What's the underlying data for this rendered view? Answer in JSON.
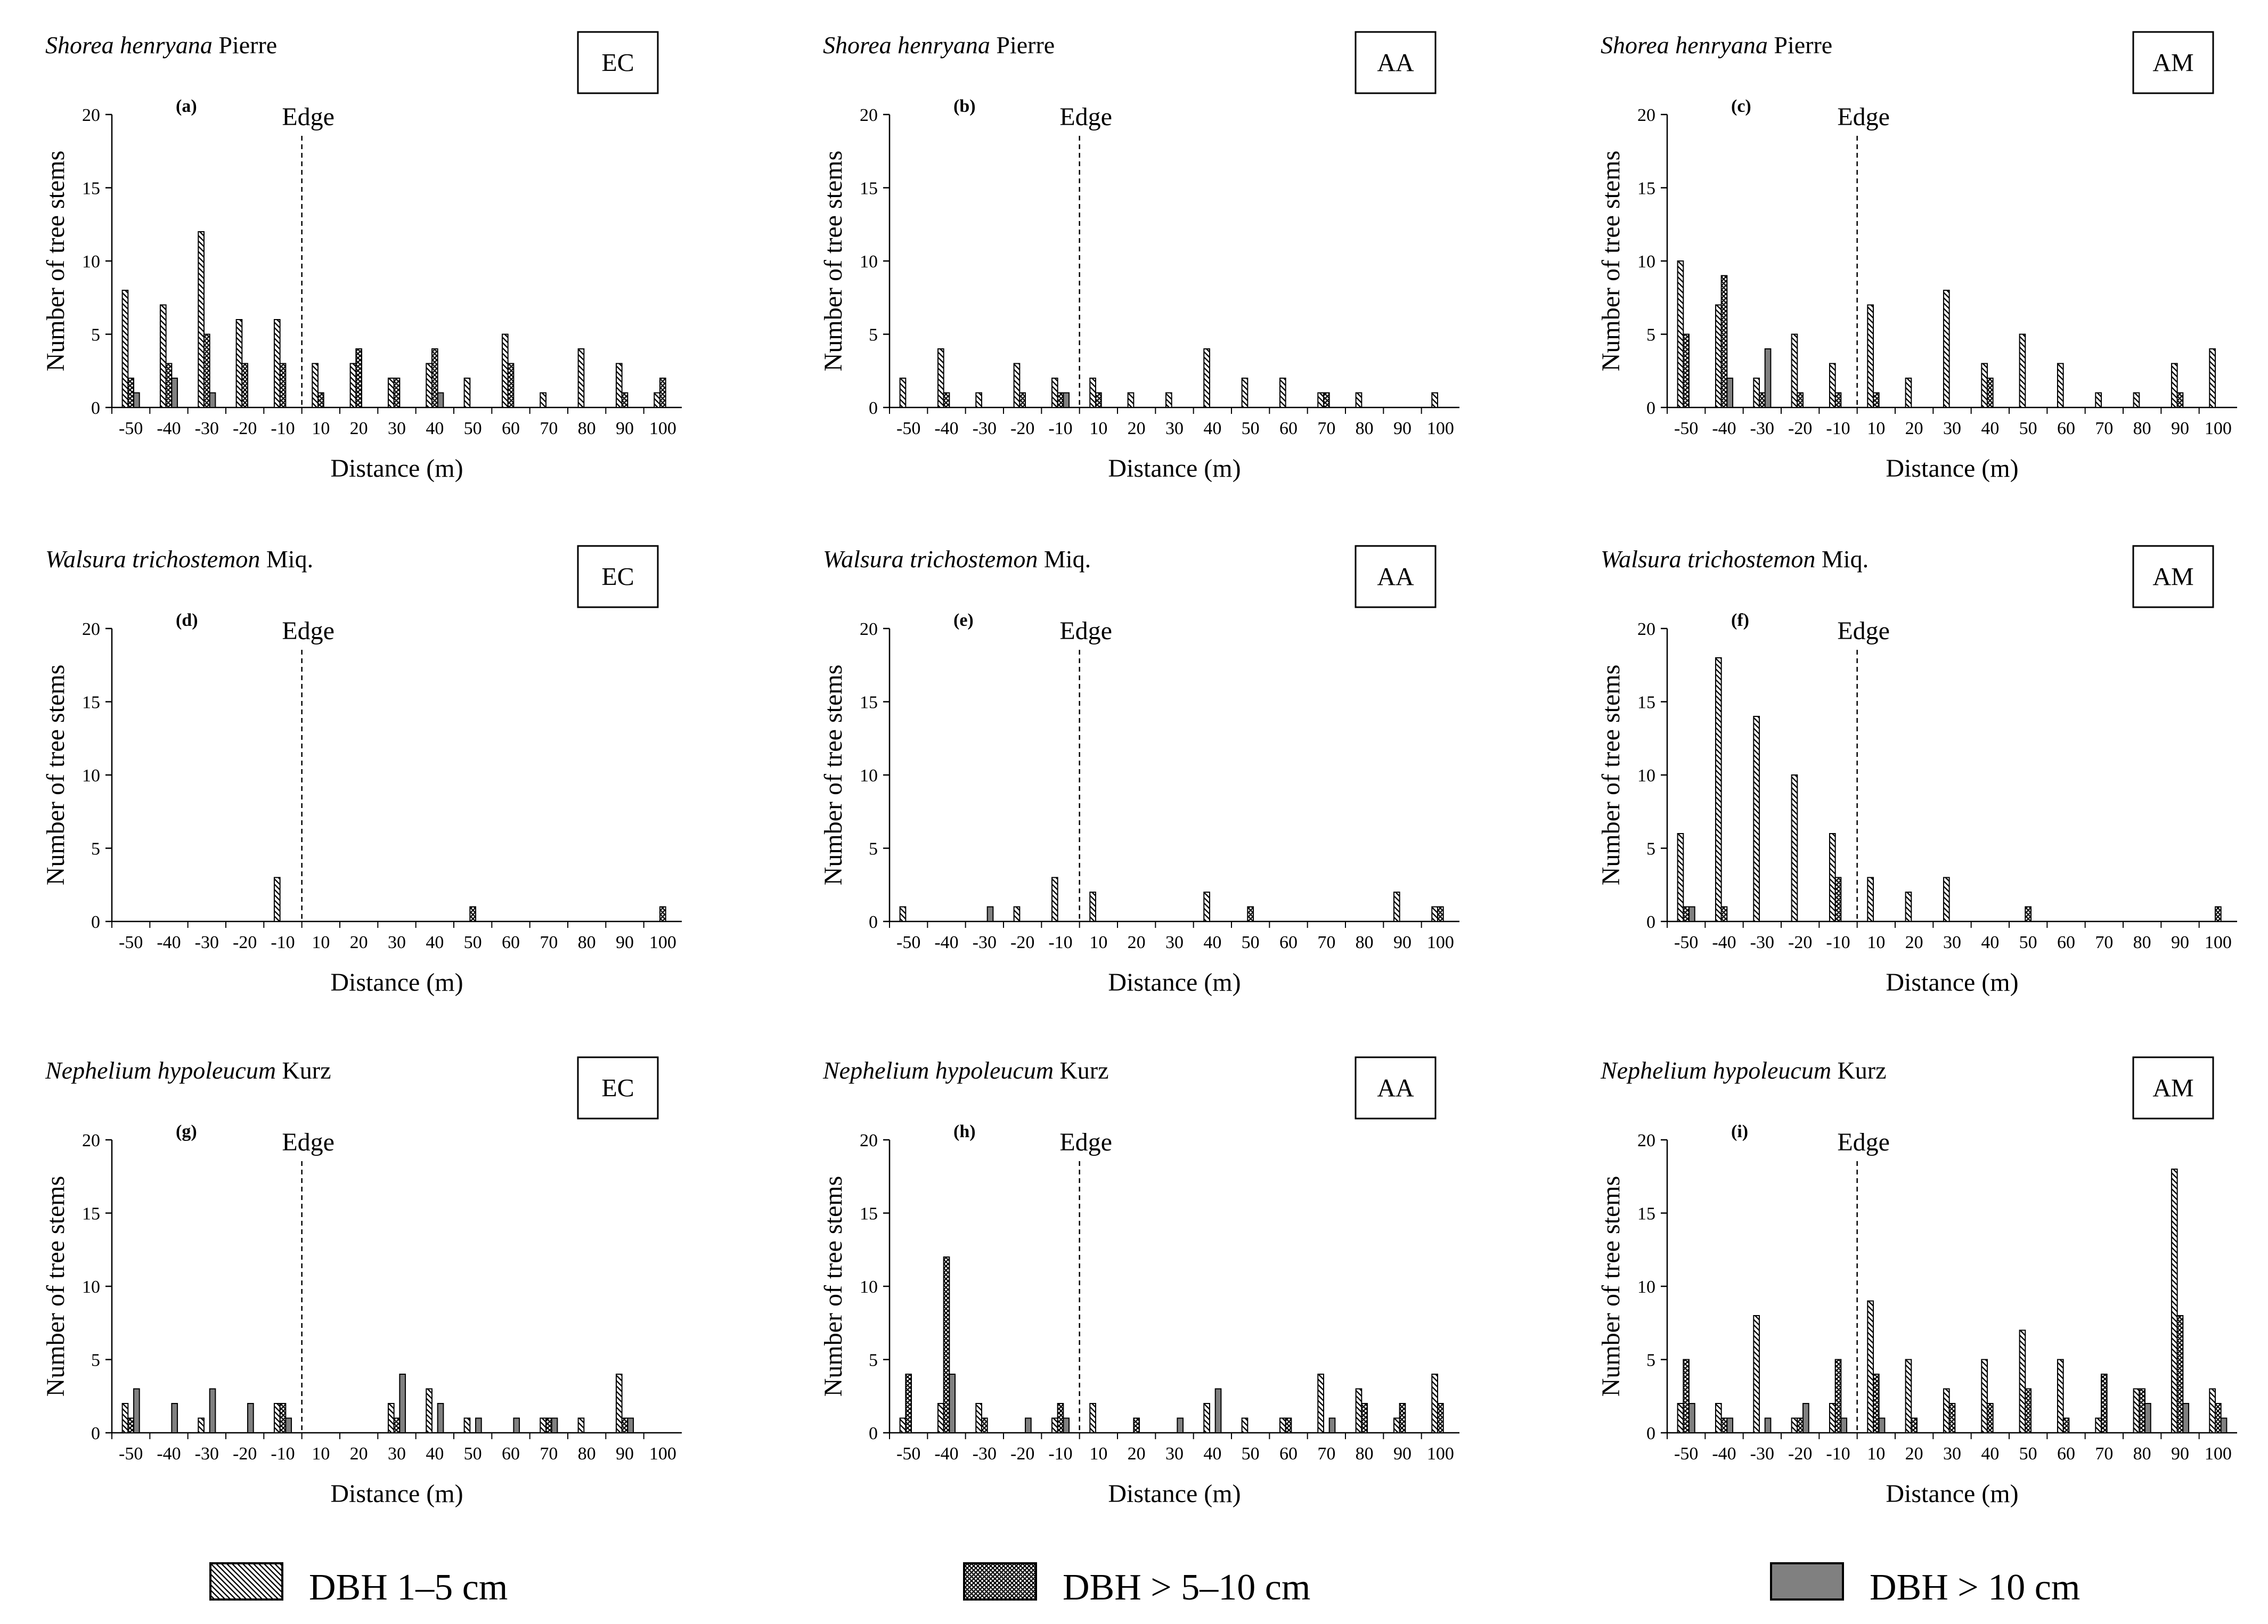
{
  "figure": {
    "legend": [
      {
        "key": "dbh1",
        "label": "DBH 1–5 cm",
        "pattern": "diag"
      },
      {
        "key": "dbh2",
        "label": "DBH > 5–10 cm",
        "pattern": "cross"
      },
      {
        "key": "dbh3",
        "label": "DBH > 10 cm",
        "pattern": "solid"
      }
    ],
    "colors": {
      "solid_fill": "#808080",
      "stroke": "#000000",
      "hatch": "#000000"
    }
  },
  "chart_data": [
    {
      "type": "bar",
      "label": "(a)",
      "species": "Shorea henryana",
      "authority": "Pierre",
      "site": "EC",
      "edge_label": "Edge",
      "edge_position": -5,
      "xlabel": "Distance (m)",
      "ylabel": "Number of tree stems",
      "ylim": [
        0,
        20
      ],
      "yticks": [
        "0",
        "5",
        "10",
        "15",
        "20"
      ],
      "categories": [
        "-50",
        "-40",
        "-30",
        "-20",
        "-10",
        "10",
        "20",
        "30",
        "40",
        "50",
        "60",
        "70",
        "80",
        "90",
        "100"
      ],
      "series": [
        {
          "name": "DBH 1–5 cm",
          "values": [
            8,
            7,
            12,
            6,
            6,
            3,
            3,
            2,
            3,
            2,
            5,
            1,
            4,
            3,
            1
          ]
        },
        {
          "name": "DBH > 5–10 cm",
          "values": [
            2,
            3,
            5,
            3,
            3,
            1,
            4,
            2,
            4,
            0,
            3,
            0,
            0,
            1,
            2
          ]
        },
        {
          "name": "DBH > 10 cm",
          "values": [
            1,
            2,
            1,
            0,
            0,
            0,
            0,
            0,
            1,
            0,
            0,
            0,
            0,
            0,
            0
          ]
        }
      ]
    },
    {
      "type": "bar",
      "label": "(b)",
      "species": "Shorea henryana",
      "authority": "Pierre",
      "site": "AA",
      "edge_label": "Edge",
      "edge_position": -5,
      "xlabel": "Distance (m)",
      "ylabel": "Number of tree stems",
      "ylim": [
        0,
        20
      ],
      "yticks": [
        "0",
        "5",
        "10",
        "15",
        "20"
      ],
      "categories": [
        "-50",
        "-40",
        "-30",
        "-20",
        "-10",
        "10",
        "20",
        "30",
        "40",
        "50",
        "60",
        "70",
        "80",
        "90",
        "100"
      ],
      "series": [
        {
          "name": "DBH 1–5 cm",
          "values": [
            2,
            4,
            1,
            3,
            2,
            2,
            1,
            1,
            4,
            2,
            2,
            1,
            1,
            0,
            1
          ]
        },
        {
          "name": "DBH > 5–10 cm",
          "values": [
            0,
            1,
            0,
            1,
            1,
            1,
            0,
            0,
            0,
            0,
            0,
            1,
            0,
            0,
            0
          ]
        },
        {
          "name": "DBH > 10 cm",
          "values": [
            0,
            0,
            0,
            0,
            1,
            0,
            0,
            0,
            0,
            0,
            0,
            0,
            0,
            0,
            0
          ]
        }
      ]
    },
    {
      "type": "bar",
      "label": "(c)",
      "species": "Shorea henryana",
      "authority": "Pierre",
      "site": "AM",
      "edge_label": "Edge",
      "edge_position": -5,
      "xlabel": "Distance (m)",
      "ylabel": "Number of tree stems",
      "ylim": [
        0,
        20
      ],
      "yticks": [
        "0",
        "5",
        "10",
        "15",
        "20"
      ],
      "categories": [
        "-50",
        "-40",
        "-30",
        "-20",
        "-10",
        "10",
        "20",
        "30",
        "40",
        "50",
        "60",
        "70",
        "80",
        "90",
        "100"
      ],
      "series": [
        {
          "name": "DBH 1–5 cm",
          "values": [
            10,
            7,
            2,
            5,
            3,
            7,
            2,
            8,
            3,
            5,
            3,
            1,
            1,
            3,
            4
          ]
        },
        {
          "name": "DBH > 5–10 cm",
          "values": [
            5,
            9,
            1,
            1,
            1,
            1,
            0,
            0,
            2,
            0,
            0,
            0,
            0,
            1,
            0
          ]
        },
        {
          "name": "DBH > 10 cm",
          "values": [
            0,
            2,
            4,
            0,
            0,
            0,
            0,
            0,
            0,
            0,
            0,
            0,
            0,
            0,
            0
          ]
        }
      ]
    },
    {
      "type": "bar",
      "label": "(d)",
      "species": "Walsura trichostemon",
      "authority": "Miq.",
      "site": "EC",
      "edge_label": "Edge",
      "edge_position": -5,
      "xlabel": "Distance (m)",
      "ylabel": "Number of tree stems",
      "ylim": [
        0,
        20
      ],
      "yticks": [
        "0",
        "5",
        "10",
        "15",
        "20"
      ],
      "categories": [
        "-50",
        "-40",
        "-30",
        "-20",
        "-10",
        "10",
        "20",
        "30",
        "40",
        "50",
        "60",
        "70",
        "80",
        "90",
        "100"
      ],
      "series": [
        {
          "name": "DBH 1–5 cm",
          "values": [
            0,
            0,
            0,
            0,
            3,
            0,
            0,
            0,
            0,
            0,
            0,
            0,
            0,
            0,
            0
          ]
        },
        {
          "name": "DBH > 5–10 cm",
          "values": [
            0,
            0,
            0,
            0,
            0,
            0,
            0,
            0,
            0,
            1,
            0,
            0,
            0,
            0,
            1
          ]
        },
        {
          "name": "DBH > 10 cm",
          "values": [
            0,
            0,
            0,
            0,
            0,
            0,
            0,
            0,
            0,
            0,
            0,
            0,
            0,
            0,
            0
          ]
        }
      ]
    },
    {
      "type": "bar",
      "label": "(e)",
      "species": "Walsura trichostemon",
      "authority": "Miq.",
      "site": "AA",
      "edge_label": "Edge",
      "edge_position": -5,
      "xlabel": "Distance (m)",
      "ylabel": "Number of tree stems",
      "ylim": [
        0,
        20
      ],
      "yticks": [
        "0",
        "5",
        "10",
        "15",
        "20"
      ],
      "categories": [
        "-50",
        "-40",
        "-30",
        "-20",
        "-10",
        "10",
        "20",
        "30",
        "40",
        "50",
        "60",
        "70",
        "80",
        "90",
        "100"
      ],
      "series": [
        {
          "name": "DBH 1–5 cm",
          "values": [
            1,
            0,
            0,
            1,
            3,
            2,
            0,
            0,
            2,
            0,
            0,
            0,
            0,
            2,
            1
          ]
        },
        {
          "name": "DBH > 5–10 cm",
          "values": [
            0,
            0,
            0,
            0,
            0,
            0,
            0,
            0,
            0,
            1,
            0,
            0,
            0,
            0,
            1
          ]
        },
        {
          "name": "DBH > 10 cm",
          "values": [
            0,
            0,
            1,
            0,
            0,
            0,
            0,
            0,
            0,
            0,
            0,
            0,
            0,
            0,
            0
          ]
        }
      ]
    },
    {
      "type": "bar",
      "label": "(f)",
      "species": "Walsura trichostemon",
      "authority": "Miq.",
      "site": "AM",
      "edge_label": "Edge",
      "edge_position": -5,
      "xlabel": "Distance (m)",
      "ylabel": "Number of tree stems",
      "ylim": [
        0,
        20
      ],
      "yticks": [
        "0",
        "5",
        "10",
        "15",
        "20"
      ],
      "categories": [
        "-50",
        "-40",
        "-30",
        "-20",
        "-10",
        "10",
        "20",
        "30",
        "40",
        "50",
        "60",
        "70",
        "80",
        "90",
        "100"
      ],
      "series": [
        {
          "name": "DBH 1–5 cm",
          "values": [
            6,
            18,
            14,
            10,
            6,
            3,
            2,
            3,
            0,
            0,
            0,
            0,
            0,
            0,
            0
          ]
        },
        {
          "name": "DBH > 5–10 cm",
          "values": [
            1,
            1,
            0,
            0,
            3,
            0,
            0,
            0,
            0,
            1,
            0,
            0,
            0,
            0,
            1
          ]
        },
        {
          "name": "DBH > 10 cm",
          "values": [
            1,
            0,
            0,
            0,
            0,
            0,
            0,
            0,
            0,
            0,
            0,
            0,
            0,
            0,
            0
          ]
        }
      ]
    },
    {
      "type": "bar",
      "label": "(g)",
      "species": "Nephelium hypoleucum",
      "authority": "Kurz",
      "site": "EC",
      "edge_label": "Edge",
      "edge_position": -5,
      "xlabel": "Distance (m)",
      "ylabel": "Number of tree stems",
      "ylim": [
        0,
        20
      ],
      "yticks": [
        "0",
        "5",
        "10",
        "15",
        "20"
      ],
      "categories": [
        "-50",
        "-40",
        "-30",
        "-20",
        "-10",
        "10",
        "20",
        "30",
        "40",
        "50",
        "60",
        "70",
        "80",
        "90",
        "100"
      ],
      "series": [
        {
          "name": "DBH 1–5 cm",
          "values": [
            2,
            0,
            1,
            0,
            2,
            0,
            0,
            2,
            3,
            1,
            0,
            1,
            1,
            4,
            0
          ]
        },
        {
          "name": "DBH > 5–10 cm",
          "values": [
            1,
            0,
            0,
            0,
            2,
            0,
            0,
            1,
            0,
            0,
            0,
            1,
            0,
            1,
            0
          ]
        },
        {
          "name": "DBH > 10 cm",
          "values": [
            3,
            2,
            3,
            2,
            1,
            0,
            0,
            4,
            2,
            1,
            1,
            1,
            0,
            1,
            0
          ]
        }
      ]
    },
    {
      "type": "bar",
      "label": "(h)",
      "species": "Nephelium hypoleucum",
      "authority": "Kurz",
      "site": "AA",
      "edge_label": "Edge",
      "edge_position": -5,
      "xlabel": "Distance (m)",
      "ylabel": "Number of tree stems",
      "ylim": [
        0,
        20
      ],
      "yticks": [
        "0",
        "5",
        "10",
        "15",
        "20"
      ],
      "categories": [
        "-50",
        "-40",
        "-30",
        "-20",
        "-10",
        "10",
        "20",
        "30",
        "40",
        "50",
        "60",
        "70",
        "80",
        "90",
        "100"
      ],
      "series": [
        {
          "name": "DBH 1–5 cm",
          "values": [
            1,
            2,
            2,
            0,
            1,
            2,
            0,
            0,
            2,
            1,
            1,
            4,
            3,
            1,
            4
          ]
        },
        {
          "name": "DBH > 5–10 cm",
          "values": [
            4,
            12,
            1,
            0,
            2,
            0,
            1,
            0,
            0,
            0,
            1,
            0,
            2,
            2,
            2
          ]
        },
        {
          "name": "DBH > 10 cm",
          "values": [
            0,
            4,
            0,
            1,
            1,
            0,
            0,
            1,
            3,
            0,
            0,
            1,
            0,
            0,
            0
          ]
        }
      ]
    },
    {
      "type": "bar",
      "label": "(i)",
      "species": "Nephelium hypoleucum",
      "authority": "Kurz",
      "site": "AM",
      "edge_label": "Edge",
      "edge_position": -5,
      "xlabel": "Distance (m)",
      "ylabel": "Number of tree stems",
      "ylim": [
        0,
        20
      ],
      "yticks": [
        "0",
        "5",
        "10",
        "15",
        "20"
      ],
      "categories": [
        "-50",
        "-40",
        "-30",
        "-20",
        "-10",
        "10",
        "20",
        "30",
        "40",
        "50",
        "60",
        "70",
        "80",
        "90",
        "100"
      ],
      "series": [
        {
          "name": "DBH 1–5 cm",
          "values": [
            2,
            2,
            8,
            1,
            2,
            9,
            5,
            3,
            5,
            7,
            5,
            1,
            3,
            18,
            3
          ]
        },
        {
          "name": "DBH > 5–10 cm",
          "values": [
            5,
            1,
            0,
            1,
            5,
            4,
            1,
            2,
            2,
            3,
            1,
            4,
            3,
            8,
            2
          ]
        },
        {
          "name": "DBH > 10 cm",
          "values": [
            2,
            1,
            1,
            2,
            1,
            1,
            0,
            0,
            0,
            0,
            0,
            0,
            2,
            2,
            1
          ]
        }
      ]
    }
  ]
}
